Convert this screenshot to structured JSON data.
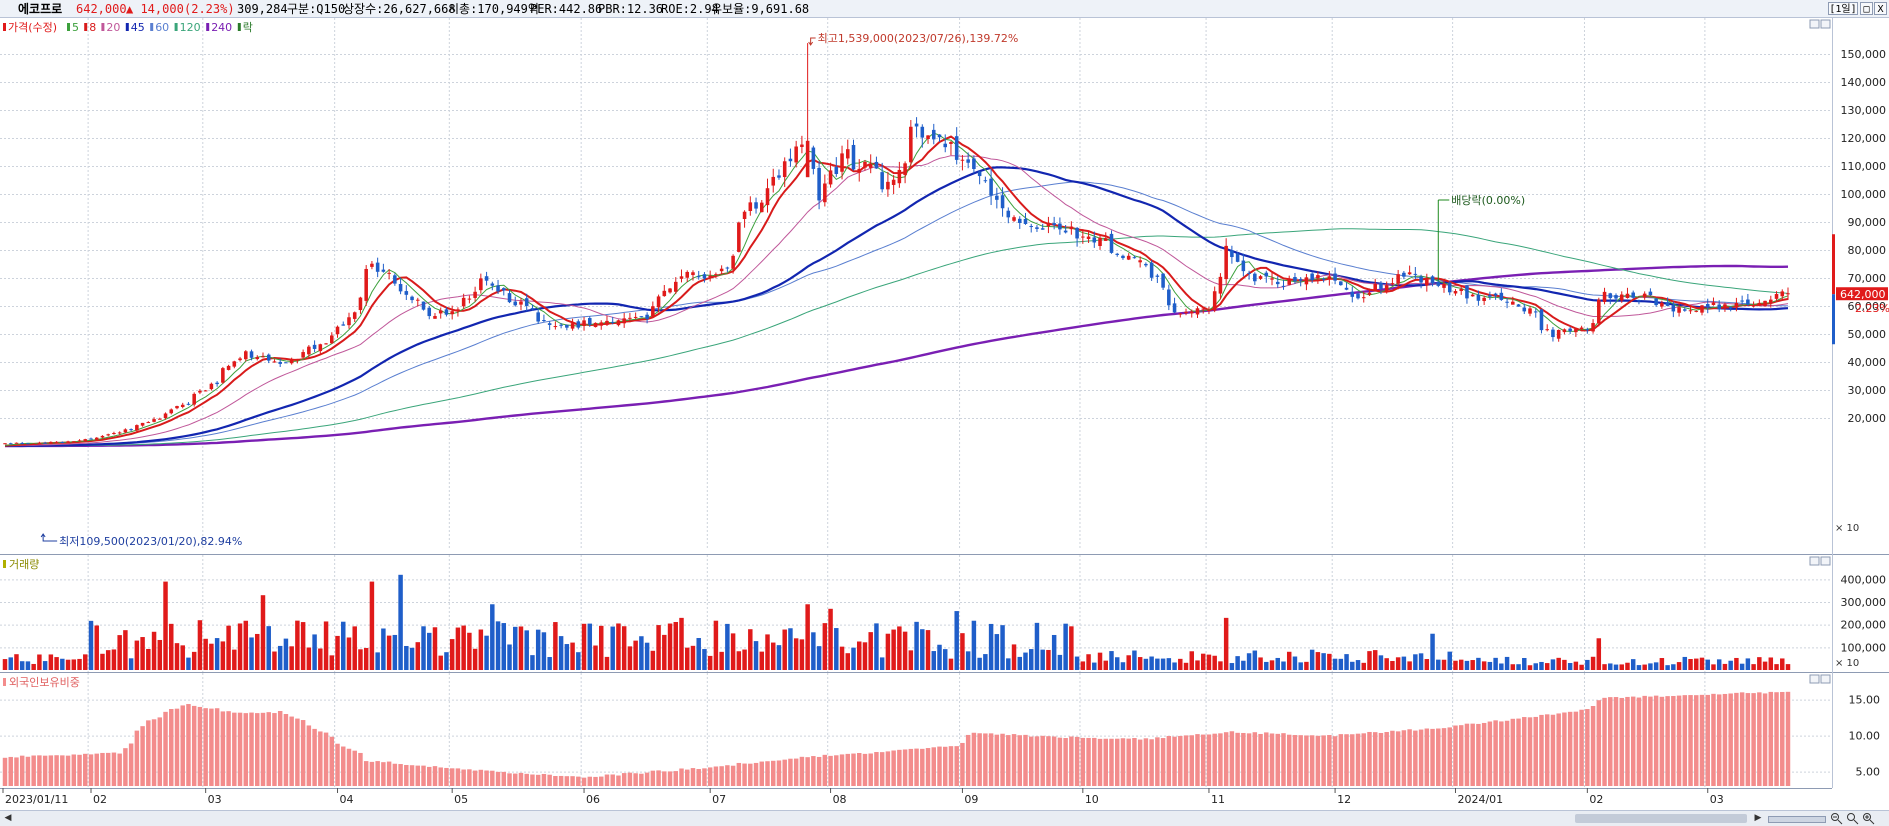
{
  "header": {
    "stock_name": "에코프로",
    "price": "642,000",
    "change": "▲ 14,000",
    "change_pct": "(2.23%)",
    "volume": "309,284",
    "market": "구분:Q150",
    "listed_shares": "상장수:26,627,668",
    "market_cap": "시총:170,949억",
    "per": "PER:442.86",
    "pbr": "PBR:12.36",
    "roe": "ROE:2.94",
    "reserve": "유보율:9,691.68",
    "period_button": "[1일]",
    "restore_button": "□",
    "close_button": "X"
  },
  "colors": {
    "up": "#e01a1a",
    "down": "#1f5ec9",
    "ma5": "#3ca03c",
    "ma8": "#d81b1b",
    "ma20": "#c0589a",
    "ma45": "#1226b0",
    "ma60": "#5a7fd0",
    "ma120": "#3aa57a",
    "ma240": "#7a1fb3",
    "foreign_bar": "#f38c8c",
    "grid": "#cdd3dc",
    "background": "#ffffff"
  },
  "price_panel": {
    "legend": [
      {
        "label": "가격(수정)",
        "color": "#e01a1a"
      },
      {
        "label": "5",
        "color": "#3ca03c"
      },
      {
        "label": "8",
        "color": "#d81b1b"
      },
      {
        "label": "20",
        "color": "#c0589a"
      },
      {
        "label": "45",
        "color": "#1226b0"
      },
      {
        "label": "60",
        "color": "#5a7fd0"
      },
      {
        "label": "120",
        "color": "#3aa57a"
      },
      {
        "label": "240",
        "color": "#7a1fb3"
      },
      {
        "label": "락",
        "color": "#2a7a2a"
      }
    ],
    "axis_unit": "× 10",
    "high_annotation": "최고1,539,000(2023/07/26),139.72%",
    "low_annotation": "최저109,500(2023/01/20),82.94%",
    "dividend_annotation": "배당락(0.00%)",
    "price_tag": "642,000",
    "pct_tag": "2.23%"
  },
  "volume_panel": {
    "legend": "거래량",
    "axis_unit": "× 10"
  },
  "foreign_panel": {
    "legend": "외국인보유비중"
  },
  "x_labels": [
    "2023/01/11",
    "02",
    "03",
    "04",
    "05",
    "06",
    "07",
    "08",
    "09",
    "10",
    "11",
    "12",
    "2024/01",
    "02",
    "03"
  ],
  "chart_data": [
    {
      "type": "candlestick",
      "title": "가격(수정)",
      "unit_note": "y values shown ×10 (KRW)",
      "ylim": [
        0,
        160000
      ],
      "yticks": [
        20000,
        30000,
        40000,
        50000,
        60000,
        70000,
        80000,
        90000,
        100000,
        110000,
        120000,
        130000,
        140000,
        150000
      ],
      "ytick_labels": [
        "20,000",
        "30,000",
        "40,000",
        "50,000",
        "60,000",
        "70,000",
        "80,000",
        "90,000",
        "100,000",
        "110,000",
        "120,000",
        "130,000",
        "140,000",
        "150,000"
      ],
      "x_start": "2023/01/11",
      "x_end": "2024/03/21",
      "close_waypoints": [
        [
          "2023/01/11",
          11000
        ],
        [
          "2023/01/20",
          10950
        ],
        [
          "2023/02/01",
          12500
        ],
        [
          "2023/02/10",
          16000
        ],
        [
          "2023/02/20",
          22000
        ],
        [
          "2023/03/01",
          30000
        ],
        [
          "2023/03/10",
          43000
        ],
        [
          "2023/03/20",
          40000
        ],
        [
          "2023/03/30",
          47000
        ],
        [
          "2023/04/05",
          55000
        ],
        [
          "2023/04/11",
          75000
        ],
        [
          "2023/04/18",
          65000
        ],
        [
          "2023/04/25",
          57000
        ],
        [
          "2023/05/02",
          60000
        ],
        [
          "2023/05/08",
          70000
        ],
        [
          "2023/05/15",
          62000
        ],
        [
          "2023/05/25",
          53000
        ],
        [
          "2023/06/05",
          54000
        ],
        [
          "2023/06/15",
          55000
        ],
        [
          "2023/06/25",
          71000
        ],
        [
          "2023/07/05",
          72000
        ],
        [
          "2023/07/12",
          95000
        ],
        [
          "2023/07/20",
          110000
        ],
        [
          "2023/07/26",
          119000
        ],
        [
          "2023/07/28",
          98000
        ],
        [
          "2023/08/04",
          114000
        ],
        [
          "2023/08/15",
          103000
        ],
        [
          "2023/08/22",
          124000
        ],
        [
          "2023/08/31",
          115000
        ],
        [
          "2023/09/05",
          107000
        ],
        [
          "2023/09/15",
          90000
        ],
        [
          "2023/09/25",
          88000
        ],
        [
          "2023/10/05",
          83000
        ],
        [
          "2023/10/16",
          75000
        ],
        [
          "2023/10/25",
          57000
        ],
        [
          "2023/11/01",
          60000
        ],
        [
          "2023/11/06",
          82000
        ],
        [
          "2023/11/10",
          70000
        ],
        [
          "2023/11/20",
          68000
        ],
        [
          "2023/11/30",
          70000
        ],
        [
          "2023/12/08",
          63000
        ],
        [
          "2023/12/18",
          72000
        ],
        [
          "2023/12/28",
          67000
        ],
        [
          "2024/01/05",
          63000
        ],
        [
          "2024/01/15",
          62000
        ],
        [
          "2024/01/24",
          50000
        ],
        [
          "2024/02/01",
          52000
        ],
        [
          "2024/02/06",
          64000
        ],
        [
          "2024/02/15",
          63000
        ],
        [
          "2024/02/25",
          58000
        ],
        [
          "2024/03/05",
          60000
        ],
        [
          "2024/03/14",
          61000
        ],
        [
          "2024/03/21",
          64200
        ]
      ],
      "moving_averages": [
        "5",
        "8",
        "20",
        "45",
        "60",
        "120",
        "240"
      ]
    },
    {
      "type": "bar",
      "title": "거래량",
      "unit_note": "y values shown ×10",
      "ylim": [
        0,
        450000
      ],
      "yticks": [
        100000,
        200000,
        300000,
        400000
      ],
      "ytick_labels": [
        "100,000",
        "200,000",
        "300,000",
        "400,000"
      ],
      "peaks": [
        [
          "2023/02/20",
          390000
        ],
        [
          "2023/03/15",
          330000
        ],
        [
          "2023/04/11",
          390000
        ],
        [
          "2023/04/18",
          420000
        ],
        [
          "2023/05/10",
          290000
        ],
        [
          "2023/06/26",
          230000
        ],
        [
          "2023/07/26",
          290000
        ],
        [
          "2023/08/01",
          270000
        ],
        [
          "2023/08/31",
          260000
        ],
        [
          "2023/11/06",
          230000
        ],
        [
          "2023/12/26",
          160000
        ],
        [
          "2024/02/05",
          140000
        ]
      ]
    },
    {
      "type": "bar",
      "title": "외국인보유비중",
      "unit": "%",
      "ylim": [
        3,
        18
      ],
      "yticks": [
        5,
        10,
        15
      ],
      "ytick_labels": [
        "5.00",
        "10.00",
        "15.00"
      ],
      "waypoints": [
        [
          "2023/01/11",
          7.0
        ],
        [
          "2023/02/08",
          7.6
        ],
        [
          "2023/02/15",
          12.0
        ],
        [
          "2023/02/24",
          14.4
        ],
        [
          "2023/03/10",
          13.0
        ],
        [
          "2023/03/20",
          13.3
        ],
        [
          "2023/03/28",
          11.0
        ],
        [
          "2023/04/10",
          6.5
        ],
        [
          "2023/05/01",
          5.4
        ],
        [
          "2023/06/01",
          4.2
        ],
        [
          "2023/06/30",
          5.5
        ],
        [
          "2023/07/26",
          7.0
        ],
        [
          "2023/08/31",
          8.5
        ],
        [
          "2023/09/05",
          10.4
        ],
        [
          "2023/09/25",
          9.8
        ],
        [
          "2023/10/16",
          9.5
        ],
        [
          "2023/11/06",
          10.5
        ],
        [
          "2023/12/01",
          10.0
        ],
        [
          "2023/12/26",
          11.0
        ],
        [
          "2024/01/10",
          12.0
        ],
        [
          "2024/01/31",
          13.5
        ],
        [
          "2024/02/06",
          15.2
        ],
        [
          "2024/02/20",
          15.5
        ],
        [
          "2024/03/21",
          16.1
        ]
      ]
    }
  ]
}
